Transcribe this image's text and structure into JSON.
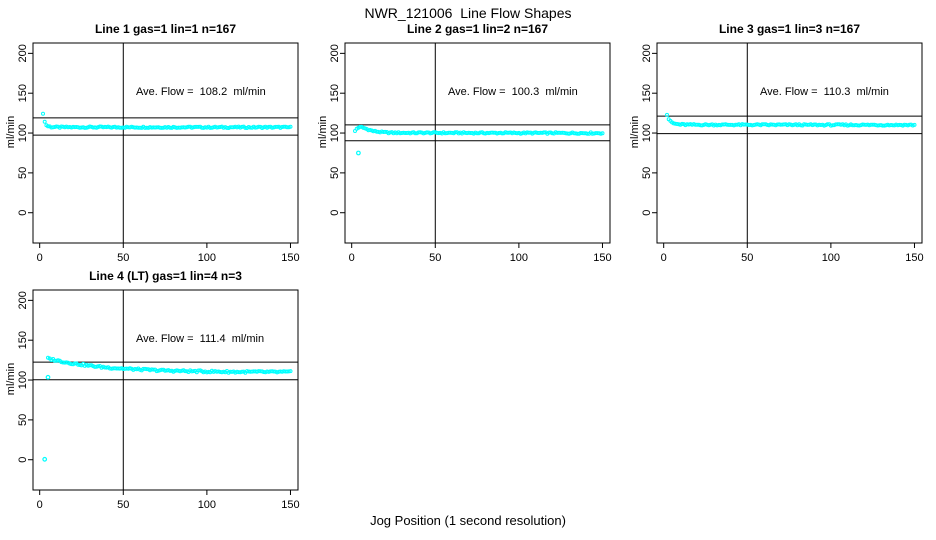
{
  "figure": {
    "title": "NWR_121006  Line Flow Shapes",
    "xlabel": "Jog Position (1 second resolution)",
    "ylabel": "ml/min",
    "background_color": "#ffffff",
    "point_color": "#00ffff",
    "line_color": "#000000"
  },
  "chart_data": [
    {
      "type": "scatter",
      "title": "Line 1 gas=1 lin=1 n=167",
      "gas": 1,
      "lin": 1,
      "n": 167,
      "annotation": "Ave. Flow =  108.2  ml/min",
      "ave_flow_ml_min": 108.2,
      "ylabel": "ml/min",
      "xlim": [
        0,
        150
      ],
      "ylim": [
        0,
        200
      ],
      "x_ticks": [
        0,
        50,
        100,
        150
      ],
      "y_ticks": [
        0,
        50,
        100,
        150,
        200
      ],
      "vline_x": 50,
      "hlines": [
        97.4,
        119.0
      ],
      "x_start": 2,
      "x_end": 150,
      "x_step": 1,
      "series_keypoints": [
        [
          2,
          125
        ],
        [
          3,
          114
        ],
        [
          4,
          110
        ],
        [
          5,
          108.6
        ],
        [
          7,
          107.6
        ],
        [
          12,
          107.3
        ],
        [
          150,
          107.2
        ]
      ],
      "noise": 0.9,
      "outliers": []
    },
    {
      "type": "scatter",
      "title": "Line 2 gas=1 lin=2 n=167",
      "gas": 1,
      "lin": 2,
      "n": 167,
      "annotation": "Ave. Flow =  100.3  ml/min",
      "ave_flow_ml_min": 100.3,
      "ylabel": "ml/min",
      "xlim": [
        0,
        150
      ],
      "ylim": [
        0,
        200
      ],
      "x_ticks": [
        0,
        50,
        100,
        150
      ],
      "y_ticks": [
        0,
        50,
        100,
        150,
        200
      ],
      "vline_x": 50,
      "hlines": [
        90.3,
        110.3
      ],
      "x_start": 2,
      "x_end": 150,
      "x_step": 1,
      "series_keypoints": [
        [
          2,
          102.5
        ],
        [
          3,
          105.5
        ],
        [
          4,
          107
        ],
        [
          6,
          107.2
        ],
        [
          9,
          105
        ],
        [
          13,
          102.3
        ],
        [
          18,
          101
        ],
        [
          25,
          100.3
        ],
        [
          150,
          99.9
        ]
      ],
      "noise": 0.9,
      "outliers": [
        [
          4,
          75
        ]
      ]
    },
    {
      "type": "scatter",
      "title": "Line 3 gas=1 lin=3 n=167",
      "gas": 1,
      "lin": 3,
      "n": 167,
      "annotation": "Ave. Flow =  110.3  ml/min",
      "ave_flow_ml_min": 110.3,
      "ylabel": "ml/min",
      "xlim": [
        0,
        150
      ],
      "ylim": [
        0,
        200
      ],
      "x_ticks": [
        0,
        50,
        100,
        150
      ],
      "y_ticks": [
        0,
        50,
        100,
        150,
        200
      ],
      "vline_x": 50,
      "hlines": [
        99.3,
        121.3
      ],
      "x_start": 2,
      "x_end": 150,
      "x_step": 1,
      "series_keypoints": [
        [
          2,
          123
        ],
        [
          3,
          117.5
        ],
        [
          4,
          114.5
        ],
        [
          6,
          112
        ],
        [
          9,
          110.8
        ],
        [
          15,
          110.4
        ],
        [
          150,
          110.1
        ]
      ],
      "noise": 0.9,
      "outliers": []
    },
    {
      "type": "scatter",
      "title": "Line 4 (LT) gas=1 lin=4 n=3",
      "gas": 1,
      "lin": 4,
      "n": 3,
      "annotation": "Ave. Flow =  111.4  ml/min",
      "ave_flow_ml_min": 111.4,
      "ylabel": "ml/min",
      "xlim": [
        0,
        150
      ],
      "ylim": [
        0,
        200
      ],
      "x_ticks": [
        0,
        50,
        100,
        150
      ],
      "y_ticks": [
        0,
        50,
        100,
        150,
        200
      ],
      "vline_x": 50,
      "hlines": [
        100.3,
        122.5
      ],
      "x_start": 5,
      "x_end": 150,
      "x_step": 1,
      "series_keypoints": [
        [
          5,
          127
        ],
        [
          8,
          125.6
        ],
        [
          12,
          123.8
        ],
        [
          16,
          122.2
        ],
        [
          20,
          120.8
        ],
        [
          25,
          119.3
        ],
        [
          30,
          118
        ],
        [
          36,
          116.6
        ],
        [
          42,
          115.5
        ],
        [
          50,
          114.3
        ],
        [
          60,
          113.2
        ],
        [
          70,
          112.3
        ],
        [
          80,
          111.6
        ],
        [
          90,
          111.1
        ],
        [
          100,
          110.7
        ],
        [
          110,
          110.4
        ],
        [
          120,
          110.2
        ],
        [
          150,
          110
        ]
      ],
      "noise": 1.2,
      "outliers": [
        [
          3,
          0.5
        ],
        [
          5,
          103.5
        ]
      ]
    }
  ]
}
